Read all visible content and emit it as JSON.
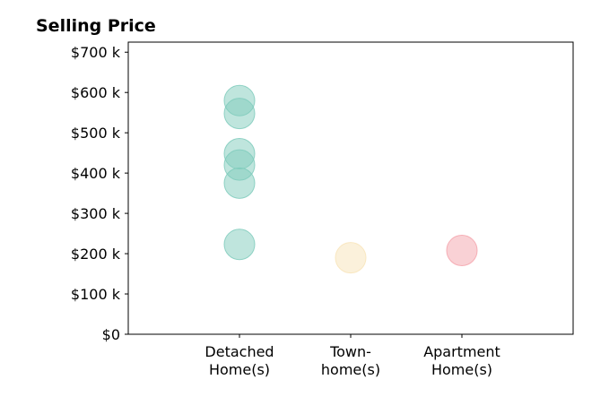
{
  "chart_data": {
    "type": "scatter",
    "title": "Selling Price",
    "xlabel": "",
    "ylabel": "",
    "categories": [
      {
        "lines": [
          "Detached",
          "Home(s)"
        ]
      },
      {
        "lines": [
          "Town-",
          "home(s)"
        ]
      },
      {
        "lines": [
          "Apartment",
          "Home(s)"
        ]
      }
    ],
    "xlim": [
      0,
      4
    ],
    "ylim": [
      0,
      725000
    ],
    "yticks": [
      {
        "value": 0,
        "label": "$0"
      },
      {
        "value": 100000,
        "label": "$100 k"
      },
      {
        "value": 200000,
        "label": "$200 k"
      },
      {
        "value": 300000,
        "label": "$300 k"
      },
      {
        "value": 400000,
        "label": "$400 k"
      },
      {
        "value": 500000,
        "label": "$500 k"
      },
      {
        "value": 600000,
        "label": "$600 k"
      },
      {
        "value": 700000,
        "label": "$700 k"
      }
    ],
    "grid": false,
    "series": [
      {
        "category_index": 0,
        "color": "#7fcbbc",
        "values": [
          580000,
          548000,
          448000,
          420000,
          375000,
          223000
        ]
      },
      {
        "category_index": 1,
        "color": "#f8e4b8",
        "values": [
          190000
        ]
      },
      {
        "category_index": 2,
        "color": "#f4a3ab",
        "values": [
          208000
        ]
      }
    ]
  }
}
